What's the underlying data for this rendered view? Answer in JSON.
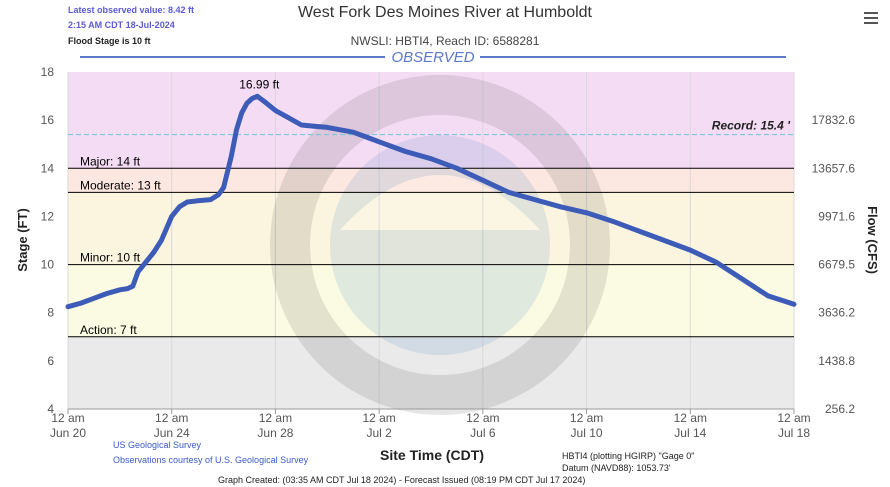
{
  "header": {
    "latest_label": "Latest observed value: 8.42 ft",
    "latest_time": "2:15 AM CDT 18-Jul-2024",
    "flood_stage_note": "Flood Stage is 10 ft",
    "title": "West Fork Des Moines River at Humboldt",
    "subtitle": "NWSLI: HBTI4, Reach ID: 6588281",
    "observed_label": "OBSERVED"
  },
  "footer": {
    "usgs": "US Geological Survey",
    "usgs_courtesy": "Observations courtesy of U.S. Geological Survey",
    "gage_info": "HBTI4 (plotting HGIRP) \"Gage 0\"",
    "datum": "Datum (NAVD88): 1053.73'",
    "graph_created": "Graph Created: (03:35 AM CDT Jul 18 2024) - Forecast Issued (08:19 PM CDT Jul 17 2024)"
  },
  "colors": {
    "series": "#3d5cb8",
    "major": "#f5dcf5",
    "moderate": "#fce8e0",
    "minor": "#fbf5df",
    "action": "#fbfbe3",
    "below": "#eaeaea",
    "record": "#7fc4dd",
    "observed_bar": "#5b78c9"
  },
  "chart_data": {
    "type": "line",
    "xlabel": "Site Time (CDT)",
    "ylabel": "Stage (FT)",
    "y2label": "Flow (CFS)",
    "ylim": [
      4,
      18
    ],
    "xlim_days": [
      "Jun 20 00:00",
      "Jul 18 00:00"
    ],
    "x_ticks": [
      {
        "top": "12 am",
        "bottom": "Jun 20",
        "day": 0
      },
      {
        "top": "12 am",
        "bottom": "Jun 24",
        "day": 4
      },
      {
        "top": "12 am",
        "bottom": "Jun 28",
        "day": 8
      },
      {
        "top": "12 am",
        "bottom": "Jul 2",
        "day": 12
      },
      {
        "top": "12 am",
        "bottom": "Jul 6",
        "day": 16
      },
      {
        "top": "12 am",
        "bottom": "Jul 10",
        "day": 20
      },
      {
        "top": "12 am",
        "bottom": "Jul 14",
        "day": 24
      },
      {
        "top": "12 am",
        "bottom": "Jul 18",
        "day": 28
      }
    ],
    "y_ticks": [
      4,
      6,
      8,
      10,
      12,
      14,
      16,
      18
    ],
    "y2_ticks": [
      {
        "stage": 4,
        "label": "256.2"
      },
      {
        "stage": 6,
        "label": "1438.8"
      },
      {
        "stage": 8,
        "label": "3636.2"
      },
      {
        "stage": 10,
        "label": "6679.5"
      },
      {
        "stage": 12,
        "label": "9971.6"
      },
      {
        "stage": 14,
        "label": "13657.6"
      },
      {
        "stage": 16,
        "label": "17832.6"
      }
    ],
    "flood_categories": [
      {
        "name": "Major: 14 ft",
        "stage": 14
      },
      {
        "name": "Moderate: 13 ft",
        "stage": 13
      },
      {
        "name": "Minor: 10 ft",
        "stage": 10
      },
      {
        "name": "Action: 7 ft",
        "stage": 7
      }
    ],
    "record": {
      "label": "Record: 15.4 '",
      "stage": 15.4
    },
    "peak": {
      "label": "16.99 ft",
      "day": 7.3,
      "stage": 16.99
    },
    "series": [
      {
        "x_day": [
          0,
          0.5,
          1,
          1.5,
          2,
          2.3,
          2.5,
          2.7,
          3,
          3.3,
          3.6,
          3.8,
          4,
          4.3,
          4.6,
          5,
          5.5,
          5.8,
          6,
          6.3,
          6.5,
          6.7,
          6.9,
          7.1,
          7.3,
          7.6,
          8,
          8.5,
          9,
          9.5,
          10,
          10.5,
          11,
          11.5,
          12,
          13,
          14,
          15,
          16,
          17,
          18,
          19,
          20,
          21,
          22,
          23,
          24,
          25,
          26,
          27,
          28
        ],
        "y_stage": [
          8.25,
          8.4,
          8.6,
          8.8,
          8.95,
          9.0,
          9.1,
          9.7,
          10.1,
          10.5,
          11.0,
          11.5,
          12.0,
          12.4,
          12.6,
          12.65,
          12.7,
          12.9,
          13.2,
          14.5,
          15.6,
          16.3,
          16.7,
          16.9,
          16.99,
          16.75,
          16.4,
          16.1,
          15.8,
          15.75,
          15.7,
          15.6,
          15.5,
          15.3,
          15.1,
          14.7,
          14.4,
          14.0,
          13.5,
          13.0,
          12.7,
          12.4,
          12.15,
          11.8,
          11.4,
          11.0,
          10.6,
          10.1,
          9.4,
          8.7,
          8.35
        ]
      }
    ]
  }
}
